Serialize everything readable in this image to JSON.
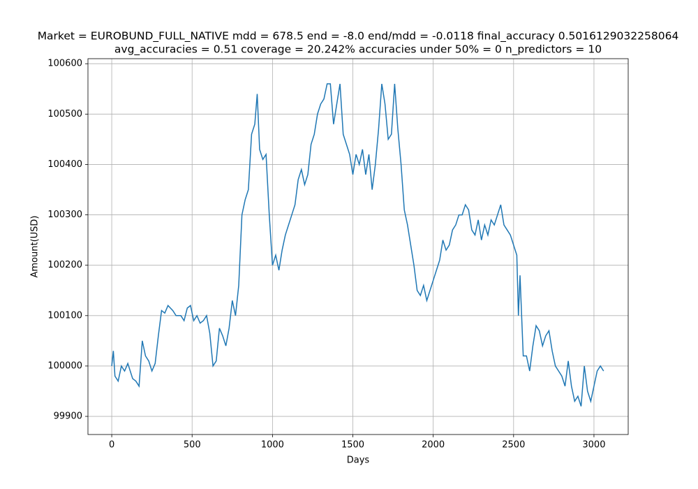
{
  "chart_data": {
    "type": "line",
    "title_lines": [
      "Market = EUROBUND_FULL_NATIVE mdd = 678.5 end = -8.0 end/mdd = -0.0118 final_accuracy 0.5016129032258064",
      "avg_accuracies = 0.51 coverage = 20.242%  accuracies under 50% = 0 n_predictors = 10"
    ],
    "xlabel": "Days",
    "ylabel": "Amount(USD)",
    "x": [
      0,
      10,
      20,
      40,
      60,
      80,
      100,
      130,
      150,
      170,
      190,
      210,
      230,
      250,
      270,
      290,
      310,
      330,
      350,
      380,
      400,
      430,
      450,
      470,
      490,
      510,
      530,
      550,
      570,
      590,
      610,
      630,
      650,
      670,
      690,
      710,
      730,
      750,
      770,
      790,
      810,
      830,
      850,
      870,
      890,
      905,
      920,
      940,
      960,
      980,
      1000,
      1020,
      1040,
      1060,
      1080,
      1100,
      1120,
      1140,
      1160,
      1180,
      1200,
      1220,
      1240,
      1260,
      1280,
      1300,
      1320,
      1340,
      1360,
      1380,
      1400,
      1420,
      1440,
      1460,
      1480,
      1500,
      1520,
      1540,
      1560,
      1580,
      1600,
      1620,
      1640,
      1660,
      1680,
      1700,
      1720,
      1740,
      1760,
      1780,
      1800,
      1820,
      1840,
      1860,
      1880,
      1900,
      1920,
      1940,
      1960,
      1980,
      2000,
      2020,
      2040,
      2060,
      2080,
      2100,
      2120,
      2140,
      2160,
      2180,
      2200,
      2220,
      2240,
      2260,
      2280,
      2300,
      2320,
      2340,
      2360,
      2380,
      2400,
      2420,
      2440,
      2460,
      2480,
      2500,
      2520,
      2530,
      2540,
      2560,
      2580,
      2600,
      2620,
      2640,
      2660,
      2680,
      2700,
      2720,
      2740,
      2760,
      2780,
      2800,
      2820,
      2840,
      2860,
      2880,
      2900,
      2920,
      2940,
      2960,
      2980,
      3000,
      3020,
      3040,
      3060
    ],
    "series": [
      {
        "color": "#1f77b4",
        "values": [
          100000,
          100030,
          99980,
          99970,
          100000,
          99990,
          100005,
          99975,
          99970,
          99960,
          100050,
          100020,
          100010,
          99990,
          100005,
          100060,
          100110,
          100105,
          100120,
          100110,
          100100,
          100100,
          100090,
          100115,
          100120,
          100090,
          100100,
          100085,
          100090,
          100100,
          100065,
          100000,
          100010,
          100075,
          100060,
          100040,
          100075,
          100130,
          100100,
          100160,
          100300,
          100330,
          100350,
          100460,
          100480,
          100540,
          100430,
          100410,
          100420,
          100300,
          100200,
          100220,
          100190,
          100230,
          100260,
          100280,
          100300,
          100320,
          100370,
          100390,
          100360,
          100380,
          100440,
          100460,
          100500,
          100520,
          100530,
          100560,
          100560,
          100480,
          100520,
          100560,
          100460,
          100440,
          100420,
          100380,
          100420,
          100400,
          100430,
          100380,
          100420,
          100350,
          100400,
          100470,
          100560,
          100520,
          100450,
          100460,
          100560,
          100470,
          100400,
          100310,
          100280,
          100240,
          100200,
          100150,
          100140,
          100160,
          100130,
          100150,
          100170,
          100190,
          100210,
          100250,
          100230,
          100240,
          100270,
          100280,
          100300,
          100300,
          100320,
          100310,
          100270,
          100260,
          100290,
          100250,
          100280,
          100260,
          100290,
          100280,
          100300,
          100320,
          100280,
          100270,
          100260,
          100240,
          100220,
          100100,
          100180,
          100020,
          100020,
          99990,
          100040,
          100080,
          100070,
          100040,
          100060,
          100070,
          100030,
          100000,
          99990,
          99980,
          99960,
          100010,
          99960,
          99930,
          99940,
          99920,
          100000,
          99950,
          99930,
          99960,
          99990,
          100000,
          99990
        ]
      }
    ],
    "xlim": [
      -148,
      3213
    ],
    "xticks": [
      0,
      500,
      1000,
      1500,
      2000,
      2500,
      3000
    ],
    "ylim": [
      99864,
      100610
    ],
    "yticks": [
      99900,
      100000,
      100100,
      100200,
      100300,
      100400,
      100500,
      100600
    ],
    "grid": true
  }
}
